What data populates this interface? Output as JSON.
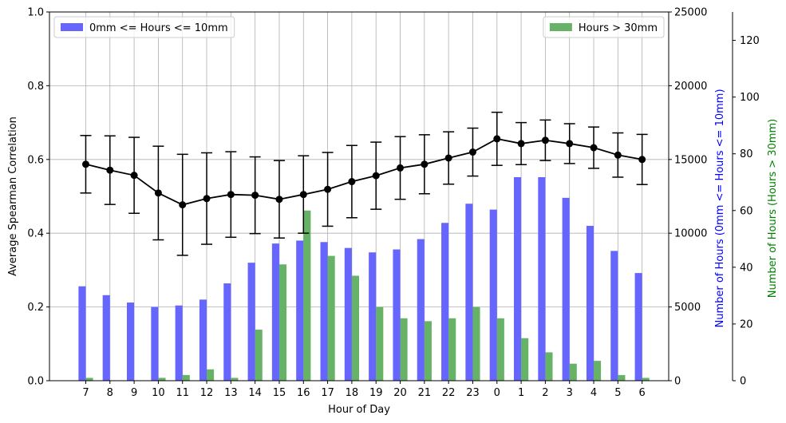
{
  "chart_data": {
    "type": "bar",
    "xlabel": "Hour of Day",
    "ylabel_left": "Average Spearman Correlation",
    "ylabel_right1": "Number of Hours (0mm <= Hours <= 10mm)",
    "ylabel_right2": "Number of Hours (Hours > 30mm)",
    "categories": [
      "7",
      "8",
      "9",
      "10",
      "11",
      "12",
      "13",
      "14",
      "15",
      "16",
      "17",
      "18",
      "19",
      "20",
      "21",
      "22",
      "23",
      "0",
      "1",
      "2",
      "3",
      "4",
      "5",
      "6"
    ],
    "ylim_left": [
      0,
      1.0
    ],
    "ylim_right1": [
      0,
      25000
    ],
    "ylim_right2": [
      0,
      130
    ],
    "yticks_left": [
      "0.0",
      "0.2",
      "0.4",
      "0.6",
      "0.8",
      "1.0"
    ],
    "yticks_right1": [
      "0",
      "5000",
      "10000",
      "15000",
      "20000",
      "25000"
    ],
    "yticks_right2": [
      "0",
      "20",
      "40",
      "60",
      "80",
      "100",
      "120"
    ],
    "grid": true,
    "series": [
      {
        "name": "0mm <= Hours <= 10mm",
        "type": "bar",
        "axis": "right1",
        "color": "#6666ff",
        "values": [
          6400,
          5800,
          5300,
          5000,
          5100,
          5500,
          6600,
          8000,
          9300,
          9500,
          9400,
          9000,
          8700,
          8900,
          9600,
          10700,
          12000,
          11600,
          13800,
          13800,
          12400,
          10500,
          8800,
          7300
        ]
      },
      {
        "name": "Hours > 30mm",
        "type": "bar",
        "axis": "right2",
        "color": "#66b266",
        "values": [
          1,
          0,
          0,
          1,
          2,
          4,
          1,
          18,
          41,
          60,
          44,
          37,
          26,
          22,
          21,
          22,
          26,
          22,
          15,
          10,
          6,
          7,
          2,
          1
        ]
      },
      {
        "type": "line",
        "axis": "left",
        "color": "#000000",
        "values": [
          0.587,
          0.571,
          0.557,
          0.509,
          0.477,
          0.494,
          0.505,
          0.503,
          0.492,
          0.505,
          0.519,
          0.54,
          0.556,
          0.577,
          0.587,
          0.604,
          0.62,
          0.656,
          0.643,
          0.652,
          0.643,
          0.632,
          0.612,
          0.6
        ],
        "errors": [
          0.078,
          0.093,
          0.103,
          0.127,
          0.137,
          0.124,
          0.116,
          0.104,
          0.105,
          0.105,
          0.1,
          0.098,
          0.091,
          0.085,
          0.08,
          0.071,
          0.065,
          0.072,
          0.057,
          0.055,
          0.054,
          0.056,
          0.06,
          0.068
        ]
      }
    ],
    "legend_left": {
      "label": "0mm <= Hours <= 10mm",
      "color": "#6666ff",
      "placement": "upper-left"
    },
    "legend_right": {
      "label": "Hours > 30mm",
      "color": "#66b266",
      "placement": "upper-right"
    }
  }
}
